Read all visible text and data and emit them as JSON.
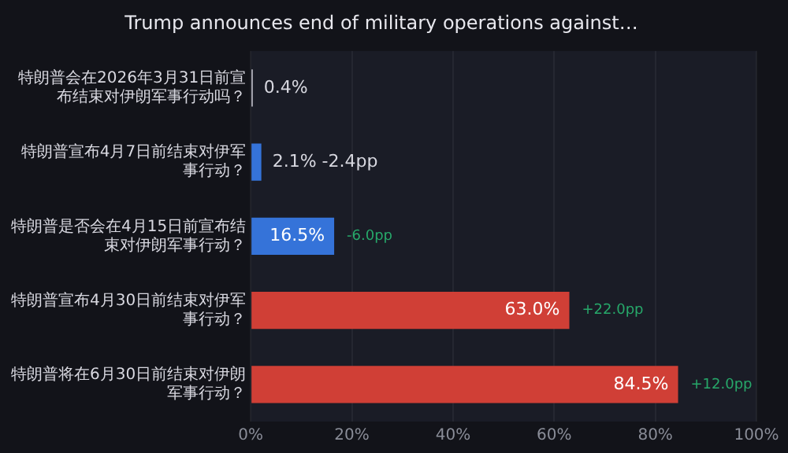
{
  "chart_data": {
    "type": "bar",
    "orientation": "horizontal",
    "title": "Trump announces end of military operations against…",
    "categories": [
      "特朗普会在2026年3月31日前宣布结束对伊朗军事行动吗？",
      "特朗普宣布4月7日前结束对伊军事行动？",
      "特朗普是否会在4月15日前宣布结束对伊朗军事行动？",
      "特朗普宣布4月30日前结束对伊军事行动？",
      "特朗普将在6月30日前结束对伊朗军事行动？"
    ],
    "values": [
      0.4,
      2.1,
      16.5,
      63.0,
      84.5
    ],
    "colors": [
      "#c8c8d0",
      "#3573d9",
      "#3573d9",
      "#d03f36",
      "#d03f36"
    ],
    "value_labels": [
      "0.4%",
      "2.1% -2.4pp",
      "16.5%",
      "63.0%",
      "84.5%"
    ],
    "annotations": [
      {
        "text": "-6.0pp",
        "x": 16.5,
        "y": "特朗普是否会在4月15日前宣布结束对伊朗军事行动？"
      },
      {
        "text": "+22.0pp",
        "x": 63.0,
        "y": "特朗普宣布4月30日前结束对伊军事行动？"
      },
      {
        "text": "+12.0pp",
        "x": 84.5,
        "y": "特朗普将在6月30日前结束对伊朗军事行动？"
      }
    ],
    "xlim": [
      0,
      100
    ],
    "xticks": [
      {
        "value": 0,
        "label": "0%"
      },
      {
        "value": 20,
        "label": "20%"
      },
      {
        "value": 40,
        "label": "40%"
      },
      {
        "value": 60,
        "label": "60%"
      },
      {
        "value": 80,
        "label": "80%"
      },
      {
        "value": 100,
        "label": "100%"
      }
    ],
    "grid": "x",
    "legend": false
  }
}
